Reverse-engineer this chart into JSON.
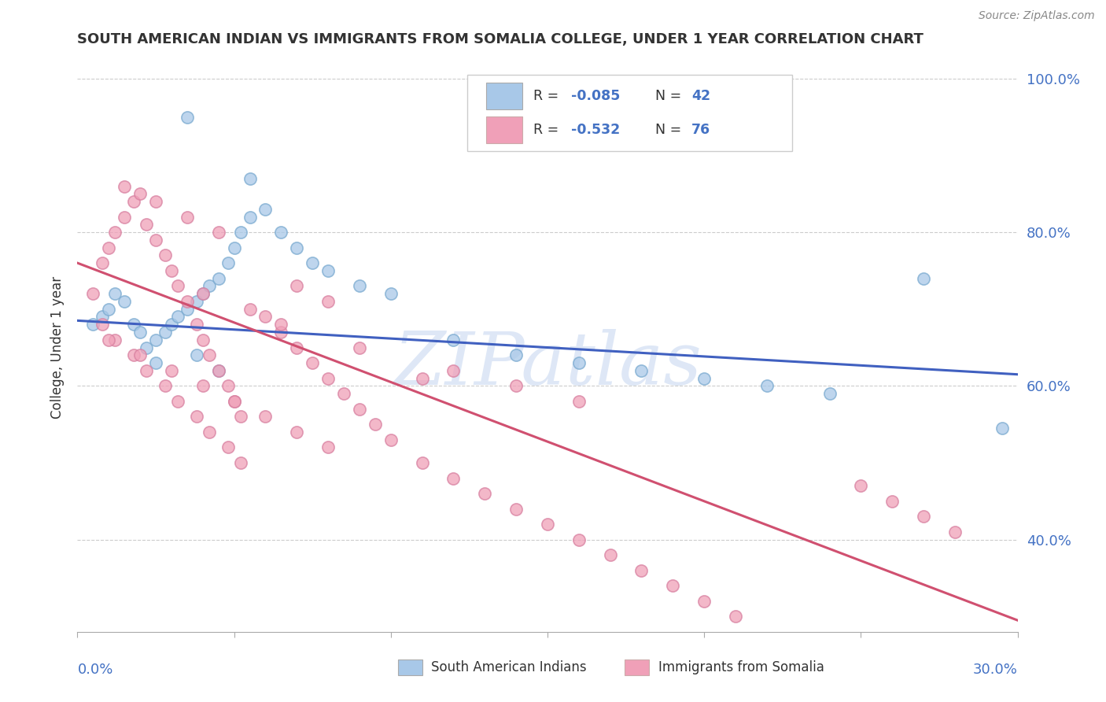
{
  "title": "SOUTH AMERICAN INDIAN VS IMMIGRANTS FROM SOMALIA COLLEGE, UNDER 1 YEAR CORRELATION CHART",
  "source": "Source: ZipAtlas.com",
  "ylabel": "College, Under 1 year",
  "xlim": [
    0.0,
    0.3
  ],
  "ylim": [
    0.28,
    1.02
  ],
  "legend_r1": "-0.085",
  "legend_n1": "42",
  "legend_r2": "-0.532",
  "legend_n2": "76",
  "color_blue": "#a8c8e8",
  "color_pink": "#f0a0b8",
  "color_blue_edge": "#7aaad0",
  "color_pink_edge": "#d880a0",
  "color_line_blue": "#4060c0",
  "color_line_pink": "#d05070",
  "watermark_color": "#c8d8f0",
  "blue_x": [
    0.005,
    0.008,
    0.01,
    0.012,
    0.015,
    0.018,
    0.02,
    0.022,
    0.025,
    0.028,
    0.03,
    0.032,
    0.035,
    0.038,
    0.04,
    0.042,
    0.045,
    0.048,
    0.05,
    0.052,
    0.055,
    0.06,
    0.065,
    0.07,
    0.075,
    0.08,
    0.09,
    0.1,
    0.12,
    0.14,
    0.16,
    0.18,
    0.2,
    0.22,
    0.24,
    0.035,
    0.055,
    0.038,
    0.025,
    0.045,
    0.27,
    0.295
  ],
  "blue_y": [
    0.68,
    0.69,
    0.7,
    0.72,
    0.71,
    0.68,
    0.67,
    0.65,
    0.66,
    0.67,
    0.68,
    0.69,
    0.7,
    0.71,
    0.72,
    0.73,
    0.74,
    0.76,
    0.78,
    0.8,
    0.82,
    0.83,
    0.8,
    0.78,
    0.76,
    0.75,
    0.73,
    0.72,
    0.66,
    0.64,
    0.63,
    0.62,
    0.61,
    0.6,
    0.59,
    0.95,
    0.87,
    0.64,
    0.63,
    0.62,
    0.74,
    0.545
  ],
  "pink_x": [
    0.005,
    0.008,
    0.01,
    0.012,
    0.015,
    0.018,
    0.02,
    0.022,
    0.025,
    0.028,
    0.03,
    0.032,
    0.035,
    0.038,
    0.04,
    0.042,
    0.045,
    0.048,
    0.05,
    0.052,
    0.008,
    0.012,
    0.018,
    0.022,
    0.028,
    0.032,
    0.038,
    0.042,
    0.048,
    0.052,
    0.06,
    0.065,
    0.07,
    0.075,
    0.08,
    0.085,
    0.09,
    0.095,
    0.1,
    0.11,
    0.12,
    0.13,
    0.14,
    0.15,
    0.16,
    0.17,
    0.18,
    0.19,
    0.2,
    0.21,
    0.07,
    0.08,
    0.12,
    0.14,
    0.16,
    0.04,
    0.055,
    0.065,
    0.09,
    0.11,
    0.015,
    0.025,
    0.035,
    0.045,
    0.25,
    0.26,
    0.27,
    0.28,
    0.01,
    0.02,
    0.03,
    0.04,
    0.05,
    0.06,
    0.07,
    0.08
  ],
  "pink_y": [
    0.72,
    0.76,
    0.78,
    0.8,
    0.82,
    0.84,
    0.85,
    0.81,
    0.79,
    0.77,
    0.75,
    0.73,
    0.71,
    0.68,
    0.66,
    0.64,
    0.62,
    0.6,
    0.58,
    0.56,
    0.68,
    0.66,
    0.64,
    0.62,
    0.6,
    0.58,
    0.56,
    0.54,
    0.52,
    0.5,
    0.69,
    0.67,
    0.65,
    0.63,
    0.61,
    0.59,
    0.57,
    0.55,
    0.53,
    0.5,
    0.48,
    0.46,
    0.44,
    0.42,
    0.4,
    0.38,
    0.36,
    0.34,
    0.32,
    0.3,
    0.73,
    0.71,
    0.62,
    0.6,
    0.58,
    0.72,
    0.7,
    0.68,
    0.65,
    0.61,
    0.86,
    0.84,
    0.82,
    0.8,
    0.47,
    0.45,
    0.43,
    0.41,
    0.66,
    0.64,
    0.62,
    0.6,
    0.58,
    0.56,
    0.54,
    0.52
  ],
  "line_blue_x0": 0.0,
  "line_blue_y0": 0.685,
  "line_blue_x1": 0.3,
  "line_blue_y1": 0.615,
  "line_pink_x0": 0.0,
  "line_pink_y0": 0.76,
  "line_pink_x1": 0.3,
  "line_pink_y1": 0.295
}
